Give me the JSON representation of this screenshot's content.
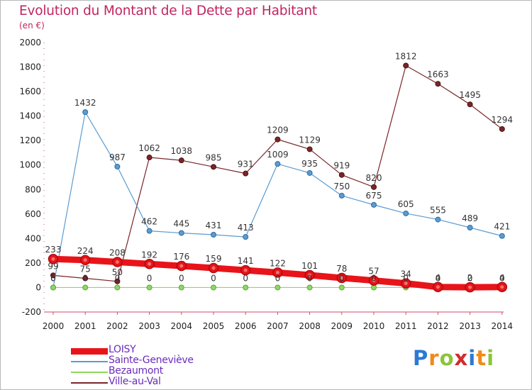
{
  "title": "Evolution du Montant de la Dette par Habitant",
  "unit": "(en €)",
  "logo": [
    "P",
    "r",
    "o",
    "x",
    "i",
    "t",
    "i"
  ],
  "logo_colors": [
    "#2a7ad6",
    "#f08a1c",
    "#8cc43a",
    "#d22b2b",
    "#2a7ad6",
    "#f08a1c",
    "#8cc43a"
  ],
  "chart_data": {
    "type": "line",
    "x": [
      2000,
      2001,
      2002,
      2003,
      2004,
      2005,
      2006,
      2007,
      2008,
      2009,
      2010,
      2011,
      2012,
      2013,
      2014
    ],
    "ylim": [
      -200,
      2000
    ],
    "yticks": [
      -200,
      0,
      200,
      400,
      600,
      800,
      1000,
      1200,
      1400,
      1600,
      1800,
      2000
    ],
    "grid": false,
    "legend_position": "bottom-left",
    "series": [
      {
        "name": "LOISY",
        "color": "#e8141a",
        "values": [
          233,
          224,
          208,
          192,
          176,
          159,
          141,
          122,
          101,
          78,
          57,
          34,
          4,
          2,
          4
        ],
        "labels": [
          "233",
          "224",
          "208",
          "192",
          "176",
          "159",
          "141",
          "122",
          "101",
          "78",
          "57",
          "34",
          "4",
          "2",
          "4"
        ]
      },
      {
        "name": "Sainte-Geneviève",
        "color": "#5b9bd0",
        "values": [
          0,
          1432,
          987,
          462,
          445,
          431,
          413,
          1009,
          935,
          750,
          675,
          605,
          555,
          489,
          421
        ],
        "labels": [
          "0",
          "1432",
          "987",
          "462",
          "445",
          "431",
          "413",
          "1009",
          "935",
          "750",
          "675",
          "605",
          "555",
          "489",
          "421"
        ]
      },
      {
        "name": "Bezaumont",
        "color": "#8fd860",
        "values": [
          0,
          0,
          0,
          0,
          0,
          0,
          0,
          0,
          0,
          0,
          0,
          0,
          0,
          0,
          0
        ],
        "labels": [
          "0",
          "0",
          "0",
          "0",
          "0",
          "0",
          "0",
          "0",
          "0",
          "0",
          "0",
          "0",
          "0",
          "0",
          "0"
        ]
      },
      {
        "name": "Ville-au-Val",
        "color": "#7a2628",
        "values": [
          99,
          75,
          50,
          1062,
          1038,
          985,
          931,
          1209,
          1129,
          919,
          820,
          1812,
          1663,
          1495,
          1294
        ],
        "labels": [
          "99",
          "75",
          "50",
          "1062",
          "1038",
          "985",
          "931",
          "1209",
          "1129",
          "919",
          "820",
          "1812",
          "1663",
          "1495",
          "1294"
        ]
      }
    ]
  }
}
